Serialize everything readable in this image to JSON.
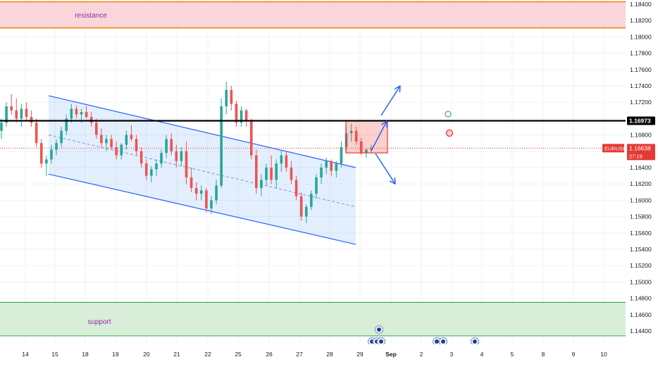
{
  "chart_data": {
    "type": "candlestick",
    "symbol": "EURUSD",
    "y_ticks": [
      "1.18400",
      "1.18200",
      "1.18000",
      "1.17800",
      "1.17600",
      "1.17400",
      "1.17200",
      "1.16800",
      "1.16600",
      "1.16400",
      "1.16200",
      "1.16000",
      "1.15800",
      "1.15600",
      "1.15400",
      "1.15200",
      "1.15000",
      "1.14800",
      "1.14600",
      "1.14400"
    ],
    "y_tick_values": [
      1.184,
      1.182,
      1.18,
      1.178,
      1.176,
      1.174,
      1.172,
      1.168,
      1.166,
      1.164,
      1.162,
      1.16,
      1.158,
      1.156,
      1.154,
      1.152,
      1.15,
      1.148,
      1.146,
      1.144
    ],
    "ylim": [
      1.1431,
      1.1846
    ],
    "x_ticks": [
      "14",
      "15",
      "18",
      "19",
      "20",
      "21",
      "22",
      "25",
      "26",
      "27",
      "28",
      "29",
      "Sep",
      "2",
      "3",
      "4",
      "5",
      "8",
      "9",
      "10"
    ],
    "grid": true,
    "zones": [
      {
        "label": "resistance",
        "from": 1.1811,
        "to": 1.1843,
        "color": "#f8d6da",
        "border": "#f57c00"
      },
      {
        "label": "support",
        "from": 1.1434,
        "to": 1.1475,
        "color": "#d8eed8",
        "border": "#4caf50"
      }
    ],
    "key_level": {
      "label": "1.16973",
      "value": 1.16973,
      "color": "#000000"
    },
    "current_price": {
      "symbol": "EURUSD",
      "price": "1.16638",
      "countdown": "27:19",
      "value": 1.16638,
      "color": "#e53935"
    },
    "channel": {
      "upper": [
        [
          "Aug 15",
          1.1728
        ],
        [
          "Aug 28",
          1.164
        ]
      ],
      "lower": [
        [
          "Aug 15",
          1.1632
        ],
        [
          "Aug 28",
          1.1546
        ]
      ],
      "mid": [
        [
          "Aug 15",
          1.168
        ],
        [
          "Aug 28",
          1.1592
        ]
      ]
    },
    "consolidation_box": {
      "from": "Aug 28",
      "to": "Aug 29",
      "top": 1.16973,
      "bottom": 1.1658
    },
    "scenarios": [
      {
        "direction": "up",
        "target": 1.174
      },
      {
        "direction": "down",
        "target": 1.162
      }
    ],
    "ohlc": [
      [
        1.1685,
        1.17,
        1.1675,
        1.1695
      ],
      [
        1.1695,
        1.172,
        1.169,
        1.1715
      ],
      [
        1.1715,
        1.173,
        1.1705,
        1.171
      ],
      [
        1.171,
        1.1725,
        1.1695,
        1.17
      ],
      [
        1.17,
        1.1718,
        1.169,
        1.1712
      ],
      [
        1.1712,
        1.172,
        1.1698,
        1.1702
      ],
      [
        1.1702,
        1.171,
        1.169,
        1.1695
      ],
      [
        1.1695,
        1.17,
        1.1665,
        1.167
      ],
      [
        1.167,
        1.1675,
        1.164,
        1.1645
      ],
      [
        1.1645,
        1.1655,
        1.163,
        1.165
      ],
      [
        1.165,
        1.1668,
        1.1645,
        1.1662
      ],
      [
        1.1662,
        1.1675,
        1.1655,
        1.167
      ],
      [
        1.167,
        1.169,
        1.1665,
        1.1685
      ],
      [
        1.1685,
        1.1705,
        1.168,
        1.17
      ],
      [
        1.17,
        1.1718,
        1.1695,
        1.1712
      ],
      [
        1.1712,
        1.1716,
        1.17,
        1.1705
      ],
      [
        1.1705,
        1.1712,
        1.1695,
        1.1708
      ],
      [
        1.1708,
        1.1715,
        1.17,
        1.1702
      ],
      [
        1.1702,
        1.1708,
        1.169,
        1.1695
      ],
      [
        1.1695,
        1.17,
        1.1675,
        1.168
      ],
      [
        1.168,
        1.1688,
        1.1665,
        1.167
      ],
      [
        1.167,
        1.168,
        1.166,
        1.1675
      ],
      [
        1.1675,
        1.168,
        1.1662,
        1.1665
      ],
      [
        1.1665,
        1.1672,
        1.165,
        1.1655
      ],
      [
        1.1655,
        1.167,
        1.165,
        1.1668
      ],
      [
        1.1668,
        1.1685,
        1.1662,
        1.168
      ],
      [
        1.168,
        1.1692,
        1.1672,
        1.1675
      ],
      [
        1.1675,
        1.168,
        1.1655,
        1.166
      ],
      [
        1.166,
        1.1665,
        1.164,
        1.1645
      ],
      [
        1.1645,
        1.165,
        1.1625,
        1.163
      ],
      [
        1.163,
        1.1642,
        1.1622,
        1.1638
      ],
      [
        1.1638,
        1.165,
        1.163,
        1.1645
      ],
      [
        1.1645,
        1.1662,
        1.164,
        1.1658
      ],
      [
        1.1658,
        1.168,
        1.1652,
        1.1675
      ],
      [
        1.1675,
        1.1682,
        1.1655,
        1.166
      ],
      [
        1.166,
        1.1668,
        1.164,
        1.1648
      ],
      [
        1.1648,
        1.1665,
        1.1642,
        1.166
      ],
      [
        1.166,
        1.1672,
        1.162,
        1.1628
      ],
      [
        1.1628,
        1.164,
        1.161,
        1.1615
      ],
      [
        1.1615,
        1.1622,
        1.16,
        1.1608
      ],
      [
        1.1608,
        1.1618,
        1.16,
        1.1612
      ],
      [
        1.1612,
        1.1615,
        1.1585,
        1.159
      ],
      [
        1.159,
        1.1605,
        1.1583,
        1.16
      ],
      [
        1.16,
        1.1625,
        1.1595,
        1.1618
      ],
      [
        1.1618,
        1.1725,
        1.1615,
        1.1715
      ],
      [
        1.1715,
        1.1745,
        1.1705,
        1.1735
      ],
      [
        1.1735,
        1.174,
        1.171,
        1.1718
      ],
      [
        1.1718,
        1.1722,
        1.169,
        1.1695
      ],
      [
        1.1695,
        1.1715,
        1.169,
        1.171
      ],
      [
        1.171,
        1.1712,
        1.169,
        1.1698
      ],
      [
        1.1698,
        1.17,
        1.165,
        1.1655
      ],
      [
        1.1655,
        1.1662,
        1.1608,
        1.1615
      ],
      [
        1.1615,
        1.1632,
        1.1605,
        1.1625
      ],
      [
        1.1625,
        1.1645,
        1.1618,
        1.164
      ],
      [
        1.164,
        1.1655,
        1.162,
        1.1625
      ],
      [
        1.1625,
        1.165,
        1.1615,
        1.1645
      ],
      [
        1.1645,
        1.1662,
        1.1635,
        1.1655
      ],
      [
        1.1655,
        1.166,
        1.1635,
        1.164
      ],
      [
        1.164,
        1.1648,
        1.162,
        1.1625
      ],
      [
        1.1625,
        1.163,
        1.16,
        1.1605
      ],
      [
        1.1605,
        1.161,
        1.1575,
        1.158
      ],
      [
        1.158,
        1.1595,
        1.1572,
        1.1592
      ],
      [
        1.1592,
        1.1612,
        1.1588,
        1.1608
      ],
      [
        1.1608,
        1.1632,
        1.1602,
        1.1628
      ],
      [
        1.1628,
        1.1645,
        1.162,
        1.164
      ],
      [
        1.164,
        1.1652,
        1.1632,
        1.1648
      ],
      [
        1.1648,
        1.165,
        1.163,
        1.1636
      ],
      [
        1.1636,
        1.1648,
        1.1628,
        1.1645
      ],
      [
        1.1645,
        1.1672,
        1.164,
        1.1665
      ],
      [
        1.1665,
        1.169,
        1.166,
        1.1682
      ],
      [
        1.1682,
        1.1694,
        1.1672,
        1.1685
      ],
      [
        1.1685,
        1.169,
        1.1668,
        1.1672
      ],
      [
        1.1672,
        1.1676,
        1.1655,
        1.1658
      ],
      [
        1.1658,
        1.1664,
        1.1652,
        1.1662
      ],
      [
        1.1662,
        1.1668,
        1.1658,
        1.16638
      ]
    ]
  }
}
